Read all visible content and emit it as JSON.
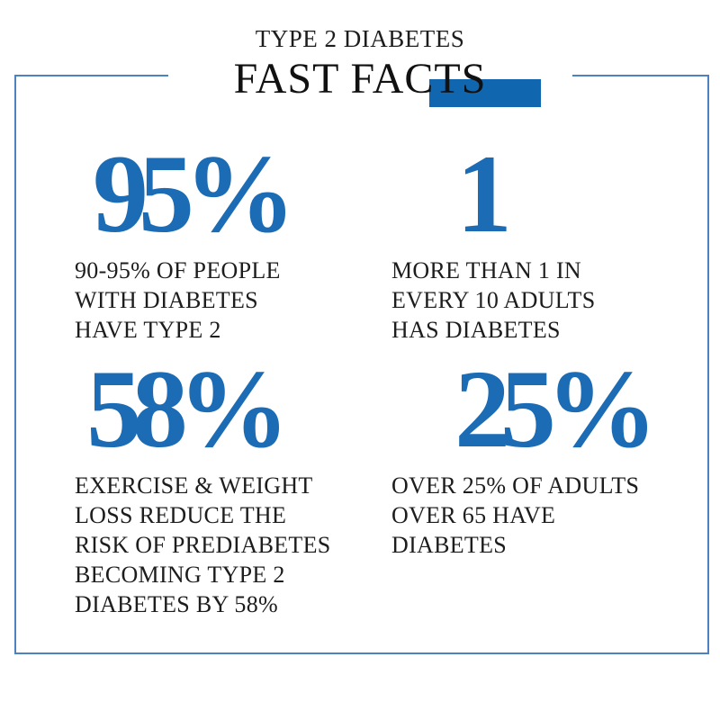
{
  "header": {
    "kicker": "TYPE 2 DIABETES",
    "title": "FAST FACTS"
  },
  "colors": {
    "number_blue": "#1b6cb5",
    "accent_rect_blue": "#1166b0",
    "border_blue": "#4d82c1",
    "text_color": "#1d1d1d",
    "background": "#ffffff"
  },
  "stats": [
    {
      "value": "95%",
      "caption_lines": [
        "90-95% OF PEOPLE",
        "WITH DIABETES",
        "HAVE TYPE 2"
      ]
    },
    {
      "value": "1",
      "caption_lines": [
        "MORE THAN 1 IN",
        "EVERY 10 ADULTS",
        "HAS DIABETES"
      ]
    },
    {
      "value": "58%",
      "caption_lines": [
        "EXERCISE & WEIGHT",
        "LOSS REDUCE THE",
        "RISK OF PREDIABETES",
        "BECOMING TYPE 2",
        "DIABETES BY 58%"
      ]
    },
    {
      "value": "25%",
      "caption_lines": [
        "OVER 25% OF ADULTS",
        "OVER 65 HAVE",
        "DIABETES"
      ]
    }
  ]
}
